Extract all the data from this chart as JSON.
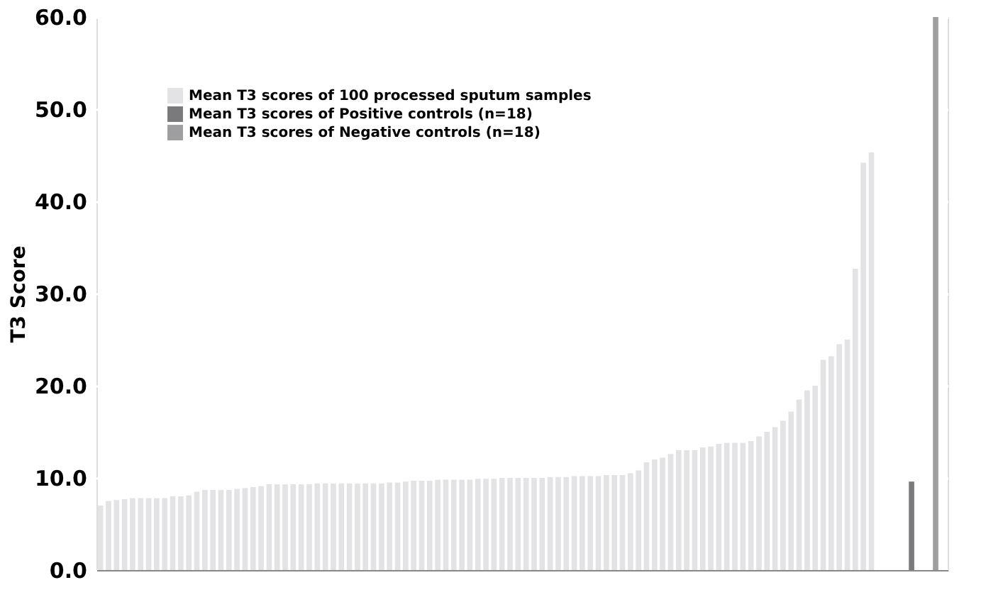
{
  "chart_data": {
    "type": "bar",
    "ylabel": "T3 Score",
    "categories": [
      null,
      null,
      null,
      null,
      null,
      null,
      null,
      null,
      null,
      null,
      null,
      null,
      null,
      null,
      null,
      null,
      null,
      null,
      null,
      null,
      null,
      null,
      null,
      null,
      null,
      null,
      null,
      null,
      null,
      null,
      null,
      null,
      null,
      null,
      null,
      null,
      null,
      null,
      null,
      null,
      null,
      null,
      null,
      null,
      null,
      null,
      null,
      null,
      null,
      null,
      null,
      null,
      null,
      null,
      null,
      null,
      null,
      null,
      null,
      null,
      null,
      null,
      null,
      null,
      null,
      null,
      null,
      null,
      null,
      null,
      null,
      null,
      null,
      null,
      null,
      null,
      null,
      null,
      null,
      null,
      null,
      null,
      null,
      null,
      null,
      null,
      null,
      null,
      null,
      null,
      null,
      null,
      null,
      null,
      null,
      null,
      null,
      null,
      null,
      null,
      null,
      null,
      null,
      null,
      null,
      null
    ],
    "series": [
      {
        "name": "Mean T3 scores of 100 processed sputum samples",
        "color": "#e3e3e5",
        "values": [
          7.0,
          7.5,
          7.6,
          7.7,
          7.8,
          7.8,
          7.8,
          7.8,
          7.8,
          8.0,
          8.0,
          8.1,
          8.5,
          8.7,
          8.7,
          8.7,
          8.7,
          8.8,
          8.9,
          9.0,
          9.1,
          9.3,
          9.3,
          9.3,
          9.3,
          9.3,
          9.3,
          9.4,
          9.4,
          9.4,
          9.4,
          9.4,
          9.4,
          9.4,
          9.4,
          9.4,
          9.5,
          9.5,
          9.6,
          9.7,
          9.7,
          9.7,
          9.8,
          9.8,
          9.8,
          9.8,
          9.8,
          9.9,
          9.9,
          9.9,
          10.0,
          10.0,
          10.0,
          10.0,
          10.0,
          10.0,
          10.1,
          10.1,
          10.1,
          10.2,
          10.2,
          10.2,
          10.2,
          10.3,
          10.3,
          10.3,
          10.5,
          10.8,
          11.7,
          12.0,
          12.2,
          12.6,
          13.0,
          13.0,
          13.0,
          13.3,
          13.4,
          13.7,
          13.8,
          13.8,
          13.8,
          14.0,
          14.5,
          15.0,
          15.5,
          16.2,
          17.2,
          18.5,
          19.5,
          20.0,
          22.8,
          23.2,
          24.5,
          25.0,
          32.7,
          44.2,
          45.3,
          null,
          null,
          null,
          null,
          null,
          null,
          null,
          null,
          null
        ]
      },
      {
        "name": "Mean T3 scores of Positive controls (n=18)",
        "color": "#7a7a7c",
        "values": [
          null,
          null,
          null,
          null,
          null,
          null,
          null,
          null,
          null,
          null,
          null,
          null,
          null,
          null,
          null,
          null,
          null,
          null,
          null,
          null,
          null,
          null,
          null,
          null,
          null,
          null,
          null,
          null,
          null,
          null,
          null,
          null,
          null,
          null,
          null,
          null,
          null,
          null,
          null,
          null,
          null,
          null,
          null,
          null,
          null,
          null,
          null,
          null,
          null,
          null,
          null,
          null,
          null,
          null,
          null,
          null,
          null,
          null,
          null,
          null,
          null,
          null,
          null,
          null,
          null,
          null,
          null,
          null,
          null,
          null,
          null,
          null,
          null,
          null,
          null,
          null,
          null,
          null,
          null,
          null,
          null,
          null,
          null,
          null,
          null,
          null,
          null,
          null,
          null,
          null,
          null,
          null,
          null,
          null,
          null,
          null,
          null,
          null,
          null,
          null,
          null,
          9.6,
          null,
          null,
          null,
          null
        ]
      },
      {
        "name": "Mean T3 scores of Negative controls (n=18)",
        "color": "#9e9ea0",
        "values": [
          null,
          null,
          null,
          null,
          null,
          null,
          null,
          null,
          null,
          null,
          null,
          null,
          null,
          null,
          null,
          null,
          null,
          null,
          null,
          null,
          null,
          null,
          null,
          null,
          null,
          null,
          null,
          null,
          null,
          null,
          null,
          null,
          null,
          null,
          null,
          null,
          null,
          null,
          null,
          null,
          null,
          null,
          null,
          null,
          null,
          null,
          null,
          null,
          null,
          null,
          null,
          null,
          null,
          null,
          null,
          null,
          null,
          null,
          null,
          null,
          null,
          null,
          null,
          null,
          null,
          null,
          null,
          null,
          null,
          null,
          null,
          null,
          null,
          null,
          null,
          null,
          null,
          null,
          null,
          null,
          null,
          null,
          null,
          null,
          null,
          null,
          null,
          null,
          null,
          null,
          null,
          null,
          null,
          null,
          null,
          null,
          null,
          null,
          null,
          null,
          null,
          null,
          null,
          null,
          60.0,
          null
        ]
      }
    ],
    "ylim": [
      0,
      60
    ],
    "yticks": [
      {
        "value": 0,
        "label": "0.0"
      },
      {
        "value": 10,
        "label": "10.0"
      },
      {
        "value": 20,
        "label": "20.0"
      },
      {
        "value": 30,
        "label": "30.0"
      },
      {
        "value": 40,
        "label": "40.0"
      },
      {
        "value": 50,
        "label": "50.0"
      },
      {
        "value": 60,
        "label": "60.0"
      }
    ],
    "grid": "y",
    "legend": "top left",
    "tick_labels": "y"
  }
}
